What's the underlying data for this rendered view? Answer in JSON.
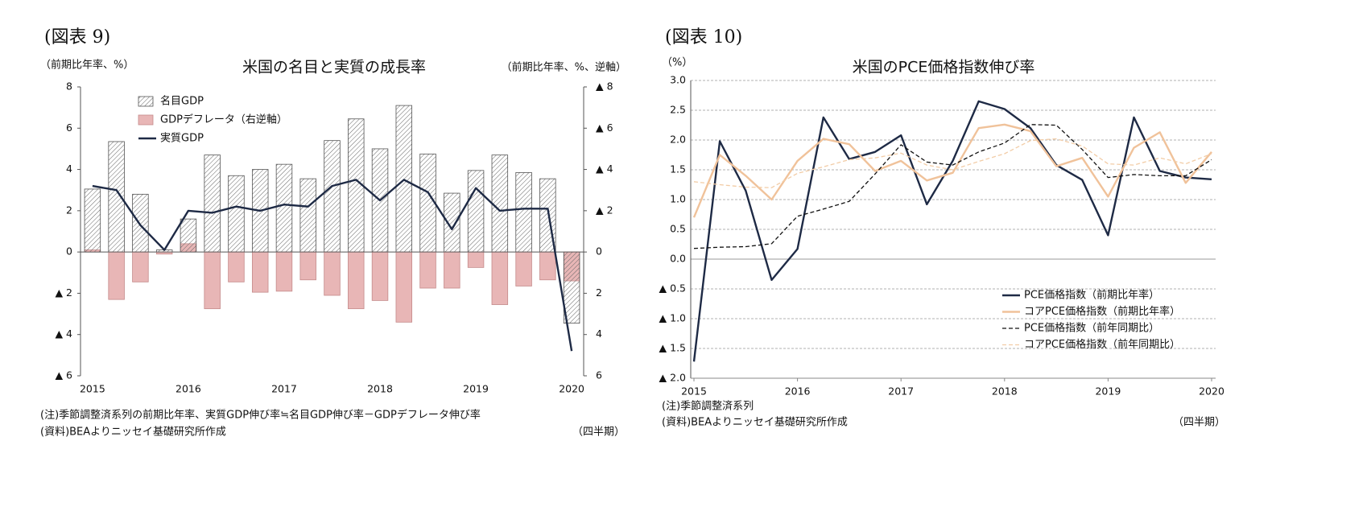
{
  "chart_data": [
    {
      "type": "bar",
      "label": "(図表 9)",
      "title": "米国の名目と実質の成長率",
      "y_label": "（前期比年率、%）",
      "y2_label": "（前期比年率、%、逆軸）",
      "notes": [
        "(注)季節調整済系列の前期比年率、実質GDP伸び率≒名目GDP伸び率－GDPデフレータ伸び率",
        "(資料)BEAよりニッセイ基礎研究所作成"
      ],
      "x_unit": "（四半期）",
      "categories": [
        "2015",
        null,
        null,
        null,
        "2016",
        null,
        null,
        null,
        "2017",
        null,
        null,
        null,
        "2018",
        null,
        null,
        null,
        "2019",
        null,
        null,
        null,
        "2020"
      ],
      "ylim": [
        -6,
        8
      ],
      "yticks": [
        {
          "value": -6,
          "label": "▲ 6"
        },
        {
          "value": -4,
          "label": "▲ 4"
        },
        {
          "value": -2,
          "label": "▲ 2"
        },
        0,
        2,
        4,
        6,
        8
      ],
      "y2lim": [
        -8,
        6
      ],
      "y2_reversed": true,
      "y2ticks": [
        {
          "value": -8,
          "label": "▲ 8"
        },
        {
          "value": -6,
          "label": "▲ 6"
        },
        {
          "value": -4,
          "label": "▲ 4"
        },
        {
          "value": -2,
          "label": "▲ 2"
        },
        0,
        2,
        4,
        6
      ],
      "grid": false,
      "legend": "upper left",
      "series": [
        {
          "name": "名目GDP",
          "kind": "bar",
          "pattern": "hatch",
          "color": "#555555",
          "values": [
            3.05,
            5.35,
            2.8,
            0.1,
            1.6,
            4.7,
            3.7,
            4.0,
            4.25,
            3.55,
            5.4,
            6.45,
            5.0,
            7.1,
            4.75,
            2.85,
            3.95,
            4.7,
            3.85,
            3.55,
            -3.45
          ]
        },
        {
          "name": "GDPデフレータ（右逆軸）",
          "kind": "bar",
          "axis": "y2",
          "color": "#e8b6b6",
          "values": [
            -0.1,
            2.3,
            1.45,
            0.1,
            -0.4,
            2.75,
            1.45,
            1.95,
            1.9,
            1.35,
            2.1,
            2.75,
            2.35,
            3.4,
            1.75,
            1.75,
            0.75,
            2.55,
            1.65,
            1.35,
            1.4
          ]
        },
        {
          "name": "実質GDP",
          "kind": "line",
          "color": "#1e2a45",
          "values": [
            3.2,
            3.0,
            1.3,
            0.1,
            2.0,
            1.9,
            2.2,
            2.0,
            2.3,
            2.2,
            3.2,
            3.5,
            2.5,
            3.5,
            2.9,
            1.1,
            3.1,
            2.0,
            2.1,
            2.1,
            -4.8
          ]
        }
      ]
    },
    {
      "type": "line",
      "label": "(図表 10)",
      "title": "米国のPCE価格指数伸び率",
      "y_label": "（%）",
      "notes": [
        "(注)季節調整済系列",
        "(資料)BEAよりニッセイ基礎研究所作成"
      ],
      "x_unit": "（四半期）",
      "categories": [
        "2015",
        null,
        null,
        null,
        "2016",
        null,
        null,
        null,
        "2017",
        null,
        null,
        null,
        "2018",
        null,
        null,
        null,
        "2019",
        null,
        null,
        null,
        "2020"
      ],
      "ylim": [
        -2,
        3
      ],
      "yticks": [
        {
          "value": -2,
          "label": "▲ 2.0"
        },
        {
          "value": -1.5,
          "label": "▲ 1.5"
        },
        {
          "value": -1,
          "label": "▲ 1.0"
        },
        {
          "value": -0.5,
          "label": "▲ 0.5"
        },
        {
          "value": 0,
          "label": "0.0"
        },
        0.5,
        {
          "value": 1,
          "label": "1.0"
        },
        1.5,
        {
          "value": 2,
          "label": "2.0"
        },
        2.5,
        {
          "value": 3,
          "label": "3.0"
        }
      ],
      "grid": true,
      "legend": "lower right",
      "series": [
        {
          "name": "PCE価格指数（前期比年率）",
          "kind": "line",
          "color": "#1e2a45",
          "dashed": false,
          "values": [
            -1.72,
            1.98,
            1.15,
            -0.35,
            0.17,
            2.38,
            1.68,
            1.8,
            2.08,
            0.92,
            1.65,
            2.65,
            2.52,
            2.2,
            1.58,
            1.33,
            0.4,
            2.38,
            1.48,
            1.37,
            1.34
          ]
        },
        {
          "name": "コアPCE価格指数（前期比年率）",
          "kind": "line",
          "color": "#f0c29a",
          "dashed": false,
          "values": [
            0.7,
            1.75,
            1.4,
            1.0,
            1.65,
            2.02,
            1.93,
            1.48,
            1.65,
            1.32,
            1.45,
            2.2,
            2.26,
            2.15,
            1.56,
            1.7,
            1.05,
            1.87,
            2.13,
            1.28,
            1.8
          ]
        },
        {
          "name": "PCE価格指数（前年同期比）",
          "kind": "line",
          "color": "#111111",
          "dashed": true,
          "values": [
            0.18,
            0.2,
            0.21,
            0.26,
            0.72,
            0.84,
            0.97,
            1.43,
            1.92,
            1.63,
            1.58,
            1.8,
            1.95,
            2.26,
            2.25,
            1.84,
            1.37,
            1.42,
            1.4,
            1.4,
            1.67
          ]
        },
        {
          "name": "コアPCE価格指数（前年同期比）",
          "kind": "line",
          "color": "#f2cca6",
          "dashed": true,
          "values": [
            1.3,
            1.25,
            1.21,
            1.2,
            1.44,
            1.55,
            1.67,
            1.7,
            1.78,
            1.58,
            1.5,
            1.64,
            1.77,
            1.99,
            2.02,
            1.9,
            1.6,
            1.58,
            1.7,
            1.6,
            1.77
          ]
        }
      ]
    }
  ]
}
